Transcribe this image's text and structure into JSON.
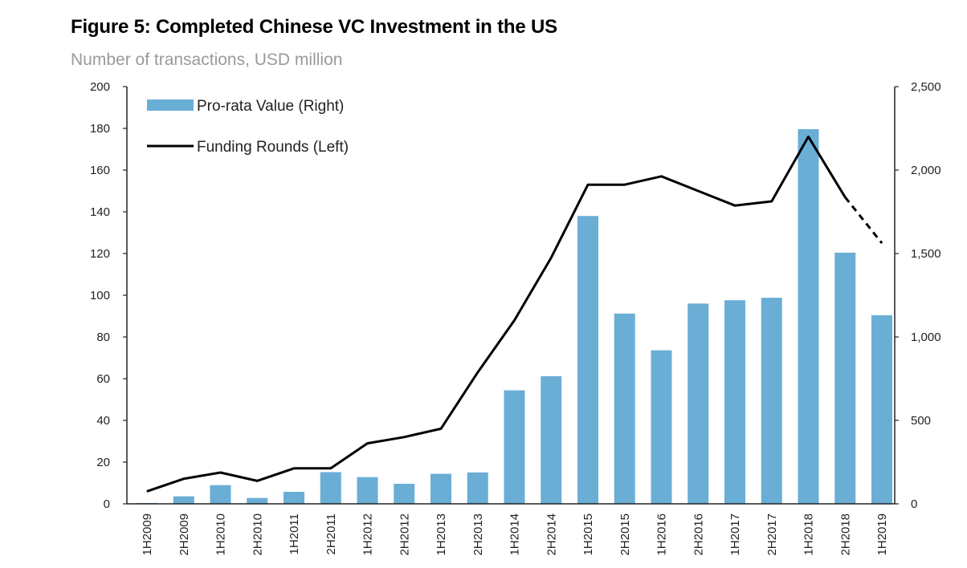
{
  "chart_data": {
    "type": "bar+line",
    "title": "Figure 5: Completed Chinese VC Investment in the US",
    "subtitle": "Number of transactions, USD million",
    "categories": [
      "1H2009",
      "2H2009",
      "1H2010",
      "2H2010",
      "1H2011",
      "2H2011",
      "1H2012",
      "2H2012",
      "1H2013",
      "2H2013",
      "1H2014",
      "2H2014",
      "1H2015",
      "2H2015",
      "1H2016",
      "2H2016",
      "1H2017",
      "2H2017",
      "1H2018",
      "2H2018",
      "1H2019"
    ],
    "series": [
      {
        "name": "Pro-rata Value (Right)",
        "type": "bar",
        "axis": "right",
        "color": "#6aaed6",
        "values": [
          5,
          45,
          112,
          35,
          72,
          190,
          160,
          120,
          180,
          188,
          680,
          765,
          1725,
          1140,
          920,
          1200,
          1220,
          1235,
          2245,
          1505,
          1130
        ]
      },
      {
        "name": "Funding Rounds (Left)",
        "type": "line",
        "axis": "left",
        "color": "#000000",
        "values": [
          6,
          12,
          15,
          11,
          17,
          17,
          29,
          32,
          36,
          63,
          88,
          118,
          153,
          153,
          157,
          150,
          143,
          145,
          176,
          147,
          125
        ],
        "dashed_from_index": 19
      }
    ],
    "ylim_left": [
      0,
      200
    ],
    "yticks_left": [
      "0",
      "20",
      "40",
      "60",
      "80",
      "100",
      "120",
      "140",
      "160",
      "180",
      "200"
    ],
    "ylim_right": [
      0,
      2500
    ],
    "yticks_right": [
      "0",
      "500",
      "1,000",
      "1,500",
      "2,000",
      "2,500"
    ],
    "legend": "top-left",
    "grid": false
  }
}
